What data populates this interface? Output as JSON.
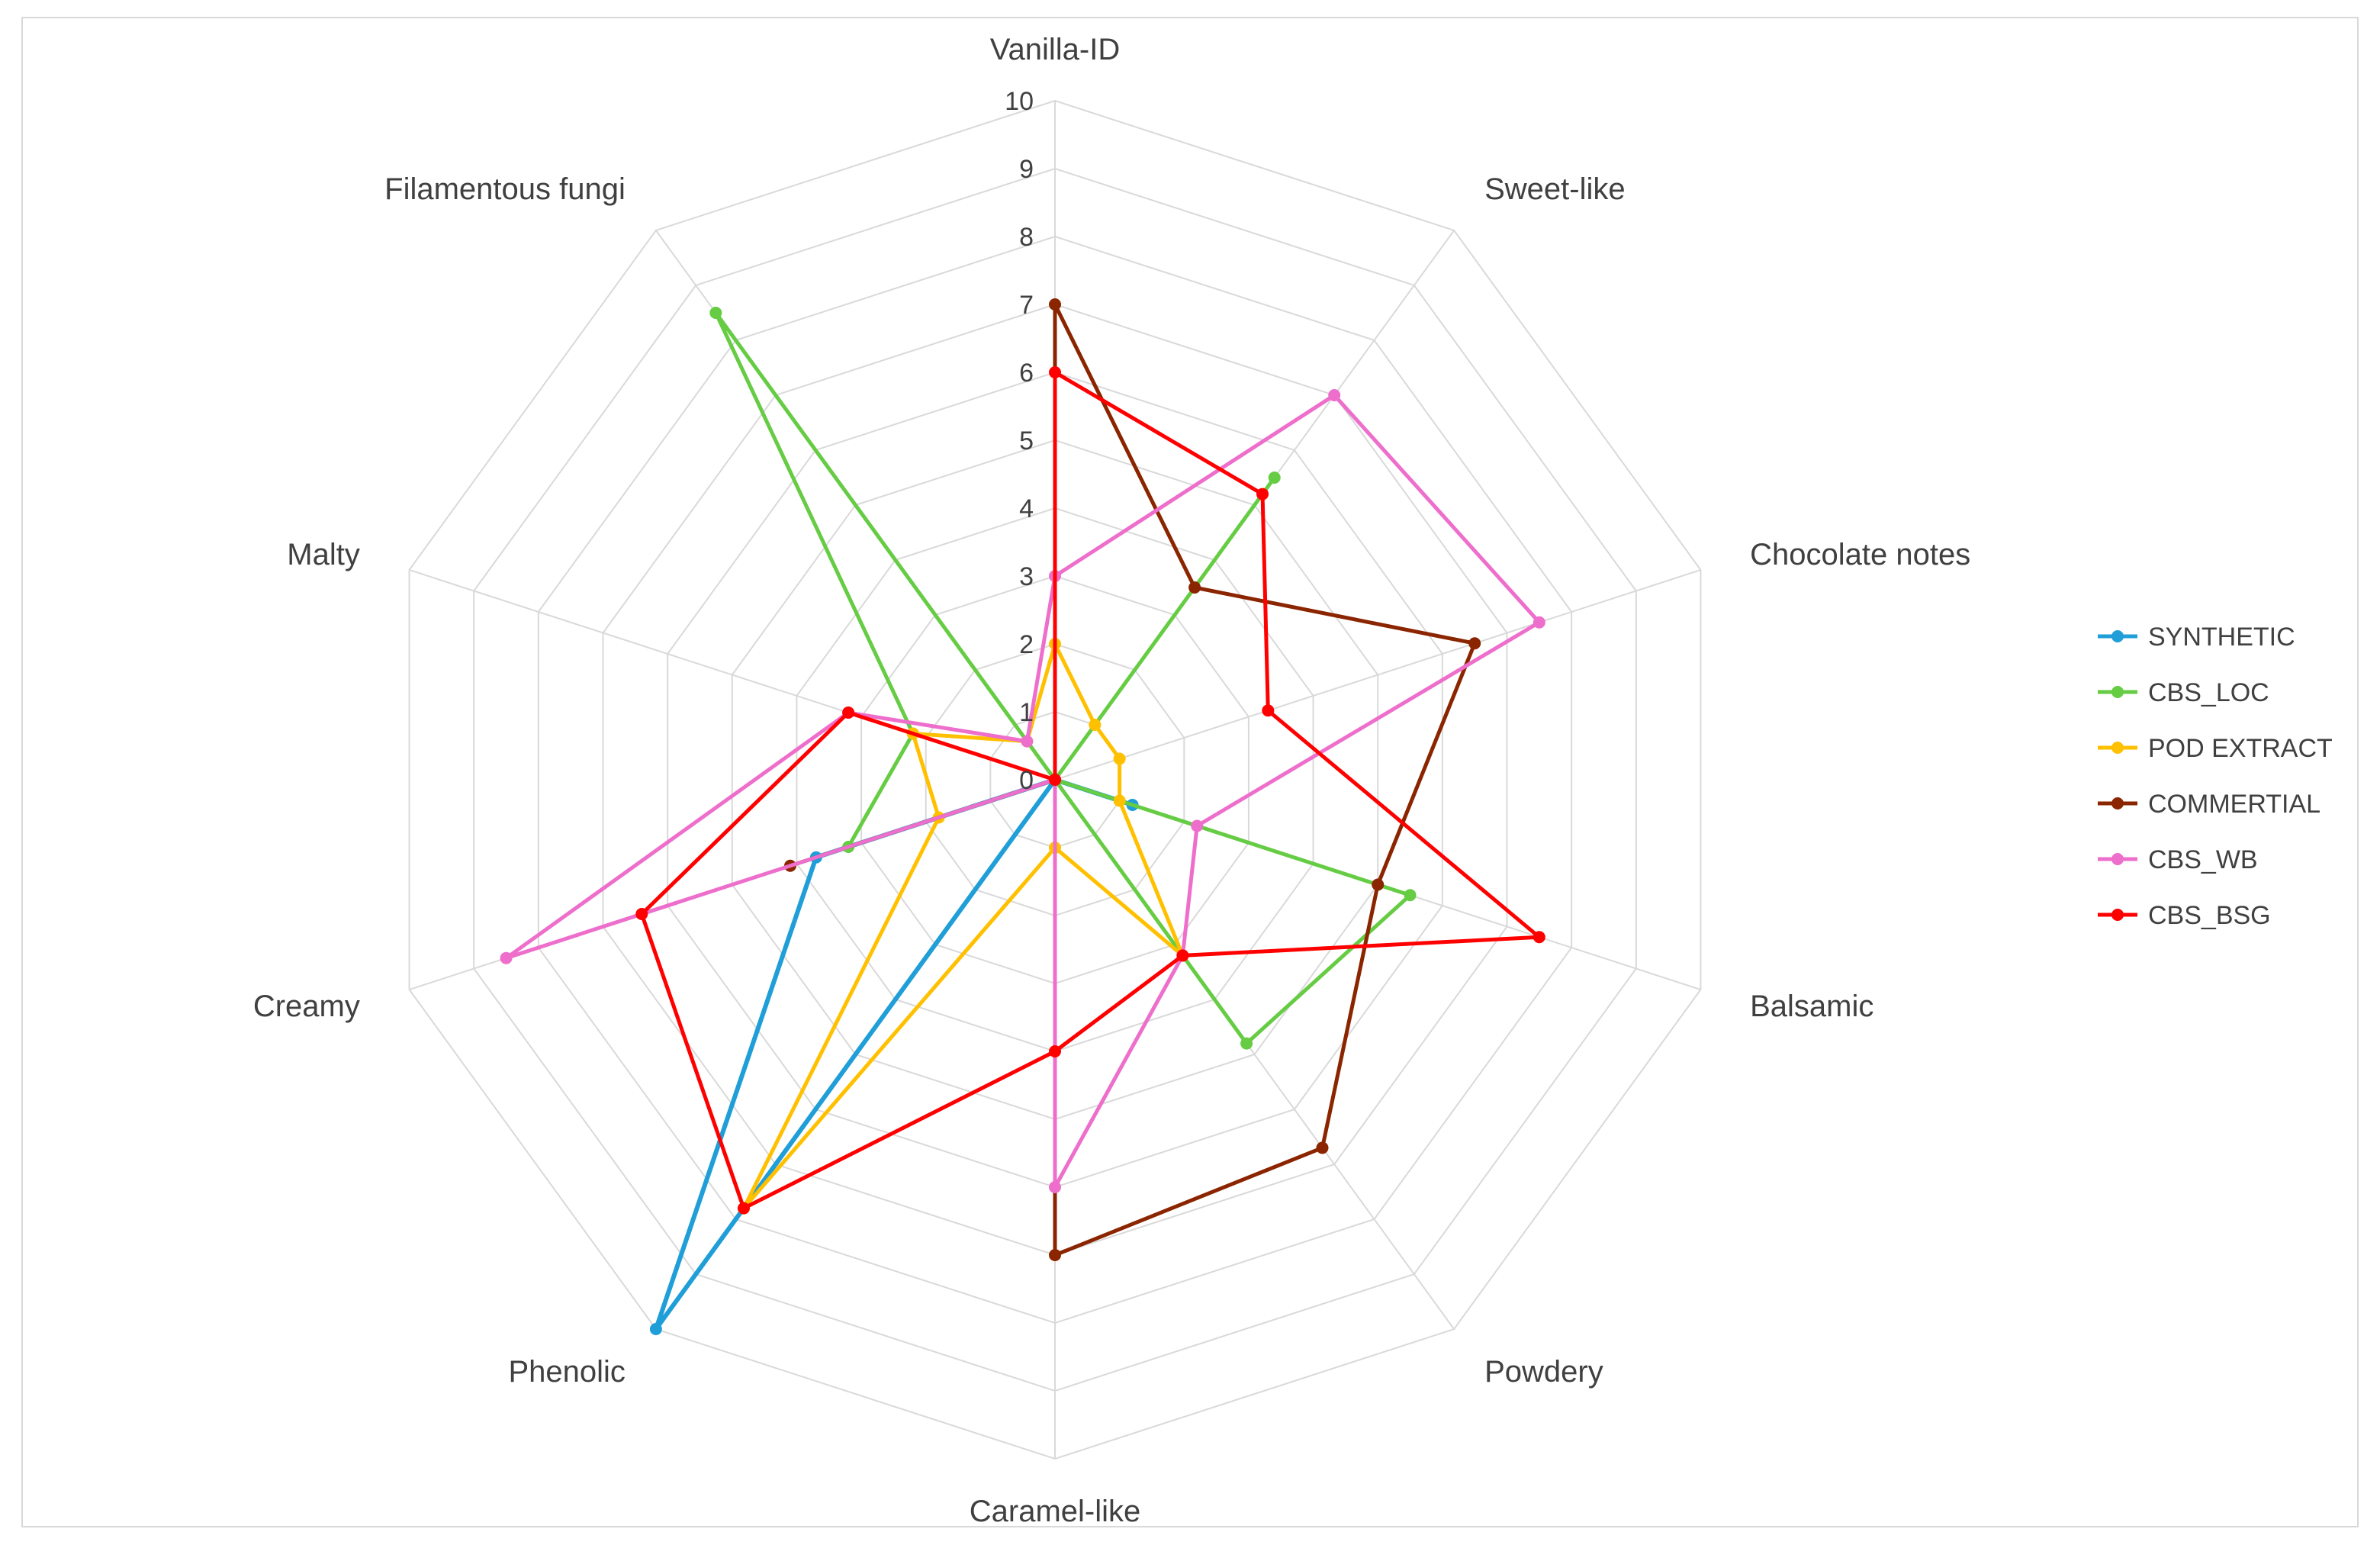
{
  "chart_data": {
    "type": "radar",
    "title": "",
    "axes": [
      "Vanilla-ID",
      "Sweet-like",
      "Chocolate notes",
      "Balsamic",
      "Powdery",
      "Caramel-like",
      "Phenolic",
      "Creamy",
      "Malty",
      "Filamentous fungi"
    ],
    "rlim": [
      0,
      10
    ],
    "ticks": [
      "0",
      "1",
      "2",
      "3",
      "4",
      "5",
      "6",
      "7",
      "8",
      "9",
      "10"
    ],
    "grid": true,
    "legend_position": "right",
    "series": [
      {
        "name": "SYNTHETIC",
        "color": "#1f9ed8",
        "values": [
          0,
          0,
          0,
          1.2,
          0,
          0,
          10,
          3.7,
          0,
          0
        ]
      },
      {
        "name": "CBS_LOC",
        "color": "#66cc44",
        "values": [
          0,
          5.5,
          0,
          5.5,
          4.8,
          0,
          0,
          3.2,
          2.2,
          8.5
        ]
      },
      {
        "name": "POD EXTRACT",
        "color": "#ffc000",
        "values": [
          2,
          1,
          1,
          1,
          3.2,
          1,
          7.8,
          1.8,
          2.2,
          0.7
        ]
      },
      {
        "name": "COMMERTIAL",
        "color": "#8b2500",
        "values": [
          7,
          3.5,
          6.5,
          5,
          6.7,
          7,
          0,
          4.1,
          0,
          0
        ]
      },
      {
        "name": "CBS_WB",
        "color": "#ee6ecc",
        "values": [
          3,
          7,
          7.5,
          2.2,
          3.2,
          6,
          0,
          8.5,
          3.2,
          0.7
        ]
      },
      {
        "name": "CBS_BSG",
        "color": "#ff0000",
        "values": [
          6,
          5.2,
          3.3,
          7.5,
          3.2,
          4,
          7.8,
          6.4,
          3.2,
          0
        ]
      }
    ]
  }
}
